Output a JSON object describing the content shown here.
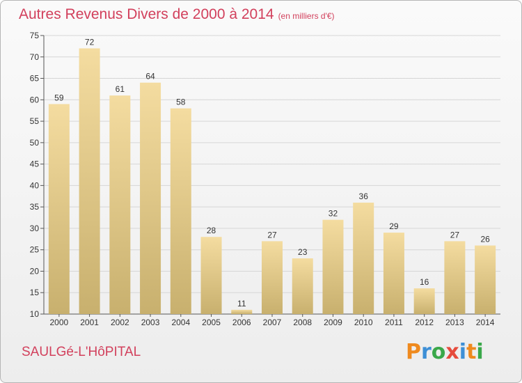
{
  "title": "Autres Revenus Divers de 2000 à 2014",
  "unit": "(en milliers d'€)",
  "location": "SAULGé-L'HôPITAL",
  "brand": {
    "name": "Proxiti",
    "letters": [
      "P",
      "r",
      "o",
      "x",
      "i",
      "t",
      "i"
    ],
    "colors": [
      "#ef8a1e",
      "#3d8fd6",
      "#3aa84a",
      "#e64b3c",
      "#3d8fd6",
      "#ef8a1e",
      "#3aa84a"
    ]
  },
  "colors": {
    "bar_light": "#f4dca0",
    "bar_dark": "#c8b06e",
    "title": "#d2405c",
    "grid": "#d6d6d6"
  },
  "chart_data": {
    "type": "bar",
    "categories": [
      "2000",
      "2001",
      "2002",
      "2003",
      "2004",
      "2005",
      "2006",
      "2007",
      "2008",
      "2009",
      "2010",
      "2011",
      "2012",
      "2013",
      "2014"
    ],
    "values": [
      59,
      72,
      61,
      64,
      58,
      28,
      11,
      27,
      23,
      32,
      36,
      29,
      16,
      27,
      26
    ],
    "ylim": [
      10,
      75
    ],
    "yticks": [
      10,
      15,
      20,
      25,
      30,
      35,
      40,
      45,
      50,
      55,
      60,
      65,
      70,
      75
    ],
    "grid": true,
    "title": "Autres Revenus Divers de 2000 à 2014",
    "xlabel": "",
    "ylabel": ""
  }
}
